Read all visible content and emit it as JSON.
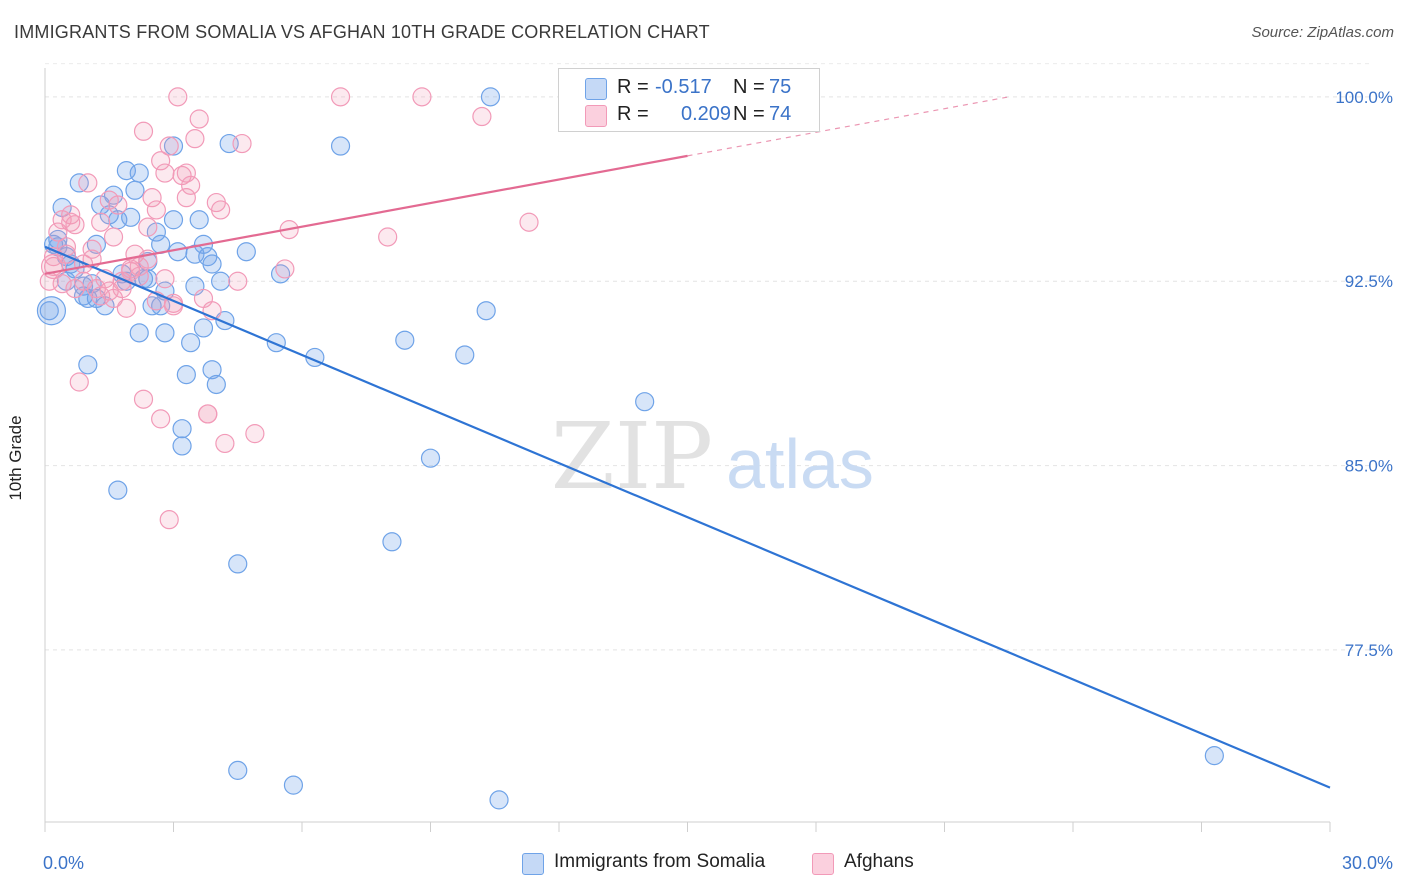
{
  "header": {
    "title": "IMMIGRANTS FROM SOMALIA VS AFGHAN 10TH GRADE CORRELATION CHART",
    "source": "Source: ZipAtlas.com"
  },
  "watermark": {
    "zip": "ZIP",
    "atlas": "atlas"
  },
  "legend": {
    "r_label": "R =",
    "n_label": "N =",
    "rows": [
      {
        "r": "-0.517",
        "n": "75",
        "color": "#6fa3e8"
      },
      {
        "r": "0.209",
        "n": "74",
        "color": "#f29ab8"
      }
    ]
  },
  "bottom_legend": [
    {
      "label": "Immigrants from Somalia",
      "color": "#6fa3e8"
    },
    {
      "label": "Afghans",
      "color": "#f29ab8"
    }
  ],
  "chart_data": {
    "type": "scatter",
    "ylabel": "10th Grade",
    "xlabel": "",
    "xlim": [
      0,
      30
    ],
    "ylim": [
      70.5,
      101.5
    ],
    "x_tick_labels": [
      {
        "value": 0,
        "label": "0.0%"
      },
      {
        "value": 30,
        "label": "30.0%"
      }
    ],
    "y_tick_labels": [
      {
        "value": 100,
        "label": "100.0%"
      },
      {
        "value": 92.5,
        "label": "92.5%"
      },
      {
        "value": 85,
        "label": "85.0%"
      },
      {
        "value": 77.5,
        "label": "77.5%"
      }
    ],
    "grid": true,
    "series": [
      {
        "name": "Immigrants from Somalia",
        "color": "#6fa3e8",
        "trend_color": "#2e74d4",
        "trend": {
          "x": [
            0,
            30
          ],
          "y": [
            93.9,
            71.9
          ]
        },
        "points": [
          [
            0.1,
            91.3
          ],
          [
            0.2,
            94.0
          ],
          [
            0.3,
            94.2
          ],
          [
            0.4,
            95.5
          ],
          [
            0.5,
            93.5
          ],
          [
            0.5,
            92.5
          ],
          [
            0.7,
            93.0
          ],
          [
            0.8,
            96.5
          ],
          [
            0.9,
            92.3
          ],
          [
            1.0,
            91.8
          ],
          [
            1.0,
            89.1
          ],
          [
            1.2,
            94.0
          ],
          [
            1.2,
            91.8
          ],
          [
            1.3,
            95.6
          ],
          [
            1.4,
            91.5
          ],
          [
            1.5,
            95.2
          ],
          [
            1.6,
            96.0
          ],
          [
            1.7,
            95.0
          ],
          [
            1.7,
            84.0
          ],
          [
            1.8,
            92.8
          ],
          [
            1.9,
            97.0
          ],
          [
            1.9,
            92.5
          ],
          [
            2.0,
            95.1
          ],
          [
            2.1,
            96.2
          ],
          [
            2.2,
            90.4
          ],
          [
            2.2,
            96.9
          ],
          [
            2.4,
            92.6
          ],
          [
            2.4,
            93.3
          ],
          [
            2.5,
            91.5
          ],
          [
            2.6,
            94.5
          ],
          [
            2.7,
            94.0
          ],
          [
            2.7,
            91.5
          ],
          [
            2.8,
            92.1
          ],
          [
            2.8,
            90.4
          ],
          [
            3.0,
            98.0
          ],
          [
            3.0,
            95.0
          ],
          [
            3.1,
            93.7
          ],
          [
            3.2,
            85.8
          ],
          [
            3.2,
            86.5
          ],
          [
            3.3,
            88.7
          ],
          [
            3.4,
            90.0
          ],
          [
            3.5,
            92.3
          ],
          [
            3.6,
            95.0
          ],
          [
            3.7,
            94.0
          ],
          [
            3.7,
            90.6
          ],
          [
            3.8,
            93.5
          ],
          [
            3.9,
            93.2
          ],
          [
            3.9,
            88.9
          ],
          [
            4.0,
            88.3
          ],
          [
            4.1,
            92.5
          ],
          [
            4.2,
            90.9
          ],
          [
            4.3,
            98.1
          ],
          [
            4.5,
            81.0
          ],
          [
            4.5,
            72.6
          ],
          [
            4.7,
            93.7
          ],
          [
            5.4,
            90.0
          ],
          [
            5.5,
            92.8
          ],
          [
            5.8,
            72.0
          ],
          [
            6.3,
            89.4
          ],
          [
            6.9,
            98.0
          ],
          [
            8.1,
            81.9
          ],
          [
            8.4,
            90.1
          ],
          [
            9.0,
            85.3
          ],
          [
            9.8,
            89.5
          ],
          [
            10.3,
            91.3
          ],
          [
            10.4,
            100.0
          ],
          [
            10.6,
            71.4
          ],
          [
            14.0,
            87.6
          ],
          [
            27.3,
            73.2
          ],
          [
            0.3,
            93.9
          ],
          [
            0.6,
            93.2
          ],
          [
            1.1,
            92.4
          ],
          [
            2.3,
            92.6
          ],
          [
            3.5,
            93.6
          ],
          [
            0.9,
            91.9
          ]
        ]
      },
      {
        "name": "Afghans",
        "color": "#f29ab8",
        "trend_color": "#e36a92",
        "trend": {
          "x": [
            0,
            15
          ],
          "y": [
            92.8,
            97.6
          ]
        },
        "trend_dashed": {
          "x": [
            15,
            22.5
          ],
          "y": [
            97.6,
            100.0
          ]
        },
        "points": [
          [
            0.1,
            92.5
          ],
          [
            0.2,
            93.5
          ],
          [
            0.3,
            94.5
          ],
          [
            0.4,
            95.0
          ],
          [
            0.5,
            93.9
          ],
          [
            0.6,
            95.2
          ],
          [
            0.6,
            94.9
          ],
          [
            0.7,
            92.2
          ],
          [
            0.8,
            88.4
          ],
          [
            0.9,
            93.2
          ],
          [
            1.0,
            96.5
          ],
          [
            1.1,
            93.8
          ],
          [
            1.2,
            92.2
          ],
          [
            1.3,
            94.9
          ],
          [
            1.4,
            92.6
          ],
          [
            1.5,
            95.8
          ],
          [
            1.6,
            94.3
          ],
          [
            1.7,
            95.6
          ],
          [
            1.8,
            92.2
          ],
          [
            1.9,
            91.4
          ],
          [
            2.0,
            93.0
          ],
          [
            2.1,
            93.6
          ],
          [
            2.2,
            93.1
          ],
          [
            2.3,
            98.6
          ],
          [
            2.3,
            87.7
          ],
          [
            2.4,
            94.7
          ],
          [
            2.5,
            95.9
          ],
          [
            2.6,
            95.4
          ],
          [
            2.7,
            97.4
          ],
          [
            2.7,
            86.9
          ],
          [
            2.8,
            96.9
          ],
          [
            2.9,
            98.0
          ],
          [
            2.9,
            82.8
          ],
          [
            3.0,
            91.5
          ],
          [
            3.1,
            100.0
          ],
          [
            3.2,
            96.8
          ],
          [
            3.3,
            96.9
          ],
          [
            3.3,
            95.9
          ],
          [
            3.4,
            96.4
          ],
          [
            3.5,
            98.3
          ],
          [
            3.6,
            99.1
          ],
          [
            3.7,
            91.8
          ],
          [
            3.8,
            87.1
          ],
          [
            3.9,
            91.3
          ],
          [
            4.0,
            95.7
          ],
          [
            4.1,
            95.4
          ],
          [
            4.2,
            85.9
          ],
          [
            4.5,
            92.5
          ],
          [
            4.6,
            98.1
          ],
          [
            4.9,
            86.3
          ],
          [
            5.6,
            93.0
          ],
          [
            5.7,
            94.6
          ],
          [
            6.9,
            100.0
          ],
          [
            8.0,
            94.3
          ],
          [
            8.8,
            100.0
          ],
          [
            10.2,
            99.2
          ],
          [
            11.3,
            94.9
          ],
          [
            3.8,
            87.1
          ],
          [
            0.2,
            93.1
          ],
          [
            0.4,
            92.4
          ],
          [
            0.5,
            93.6
          ],
          [
            0.7,
            94.8
          ],
          [
            0.9,
            92.5
          ],
          [
            1.1,
            93.4
          ],
          [
            1.3,
            91.9
          ],
          [
            1.5,
            92.1
          ],
          [
            1.6,
            91.8
          ],
          [
            1.8,
            92.5
          ],
          [
            2.0,
            92.9
          ],
          [
            2.2,
            92.7
          ],
          [
            2.4,
            93.4
          ],
          [
            2.6,
            91.7
          ],
          [
            2.8,
            92.6
          ],
          [
            3.0,
            91.6
          ]
        ]
      }
    ]
  }
}
